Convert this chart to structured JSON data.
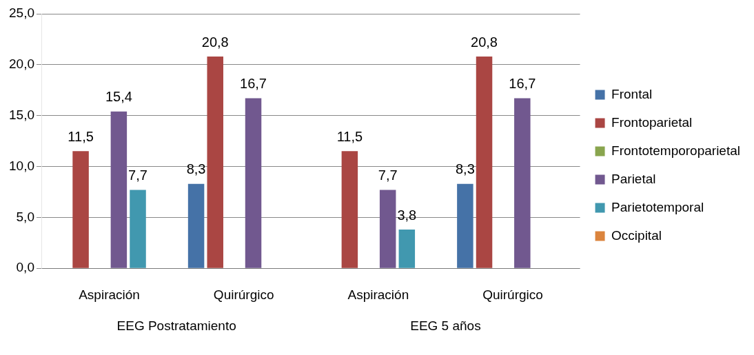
{
  "chart_data": {
    "type": "bar",
    "categories": [
      "Aspiración",
      "Quirúrgico",
      "Aspiración",
      "Quirúrgico"
    ],
    "series": [
      {
        "name": "Frontal",
        "color": "#4572a7",
        "values": [
          0,
          8.3,
          0,
          8.3
        ],
        "value_labels": [
          null,
          "8,3",
          null,
          "8,3"
        ]
      },
      {
        "name": "Frontoparietal",
        "color": "#aa4643",
        "values": [
          11.5,
          20.8,
          11.5,
          20.8
        ],
        "value_labels": [
          "11,5",
          "20,8",
          "11,5",
          "20,8"
        ]
      },
      {
        "name": "Frontotemporoparietal",
        "color": "#89a54e",
        "values": [
          0,
          0,
          0,
          0
        ]
      },
      {
        "name": "Parietal",
        "color": "#71588f",
        "values": [
          15.4,
          16.7,
          7.7,
          16.7
        ],
        "value_labels": [
          "15,4",
          "16,7",
          "7,7",
          "16,7"
        ]
      },
      {
        "name": "Parietotemporal",
        "color": "#4198af",
        "values": [
          7.7,
          0,
          3.8,
          0
        ],
        "value_labels": [
          "7,7",
          null,
          "3,8",
          null
        ]
      },
      {
        "name": "Occipital",
        "color": "#db843d",
        "values": [
          0,
          0,
          0,
          0
        ]
      }
    ],
    "ylim": [
      0,
      25
    ],
    "yticks": [
      {
        "value": 0,
        "label": "0,0"
      },
      {
        "value": 5,
        "label": "5,0"
      },
      {
        "value": 10,
        "label": "10,0"
      },
      {
        "value": 15,
        "label": "15,0"
      },
      {
        "value": 20,
        "label": "20,0"
      },
      {
        "value": 25,
        "label": "25,0"
      }
    ],
    "grid": "y",
    "legend": "right",
    "annotations": [
      "EEG Postratamiento",
      "EEG 5 años"
    ]
  }
}
